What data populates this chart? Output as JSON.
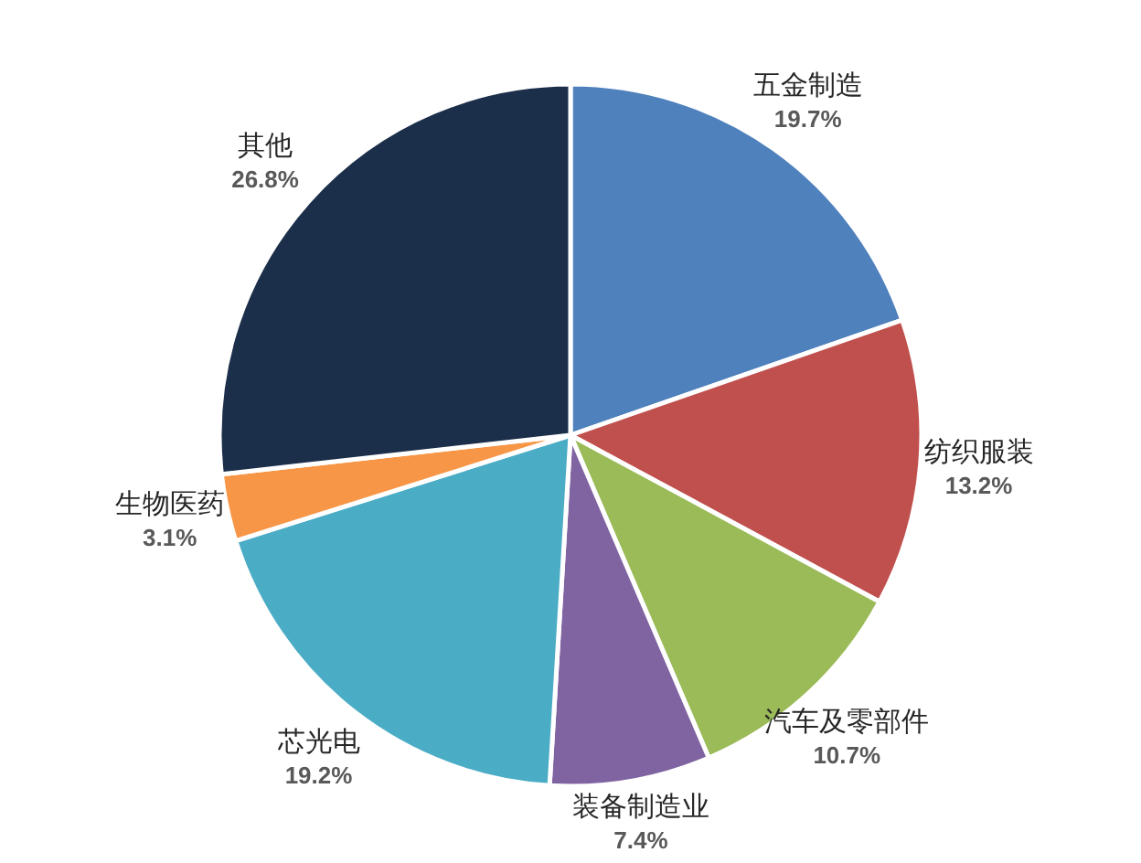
{
  "chart_data": {
    "type": "pie",
    "categories": [
      "五金制造",
      "纺织服装",
      "汽车及零部件",
      "装备制造业",
      "芯光电",
      "生物医药",
      "其他"
    ],
    "values": [
      19.7,
      13.2,
      10.7,
      7.4,
      19.2,
      3.1,
      26.8
    ],
    "value_labels": [
      "19.7%",
      "13.2%",
      "10.7%",
      "7.4%",
      "19.2%",
      "3.1%",
      "26.8%"
    ],
    "colors": [
      "#4f81bd",
      "#c0504d",
      "#9bbb59",
      "#8064a2",
      "#4bacc6",
      "#f79646",
      "#1c2f4a"
    ]
  }
}
